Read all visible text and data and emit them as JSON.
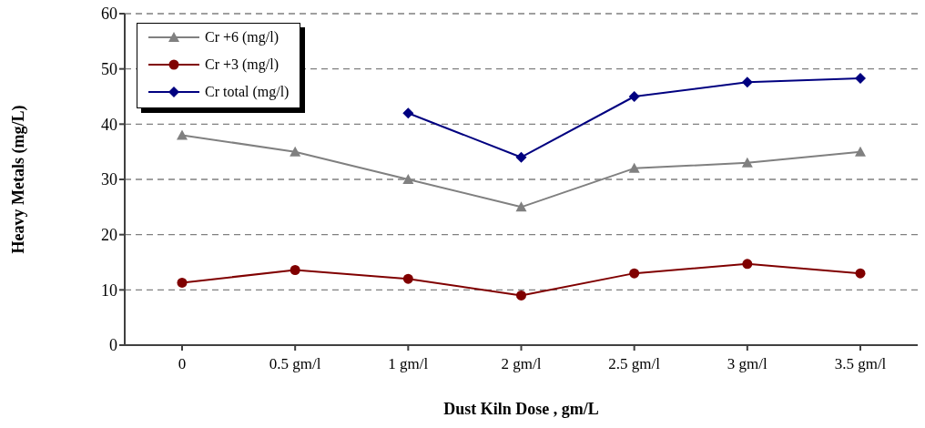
{
  "chart_data": {
    "type": "line",
    "xlabel": "Dust Kiln Dose , gm/L",
    "ylabel": "Heavy Metals (mg/L)",
    "categories": [
      "0",
      "0.5 gm/l",
      "1 gm/l",
      "2 gm/l",
      "2.5 gm/l",
      "3 gm/l",
      "3.5 gm/l"
    ],
    "series": [
      {
        "name": "Cr +6 (mg/l)",
        "color": "#808080",
        "marker": "triangle",
        "values": [
          38,
          35,
          30,
          25,
          32,
          33,
          35
        ]
      },
      {
        "name": "Cr +3 (mg/l)",
        "color": "#800000",
        "marker": "circle",
        "values": [
          11.3,
          13.6,
          12.0,
          9.0,
          13.0,
          14.7,
          13.0
        ]
      },
      {
        "name": "Cr total (mg/l)",
        "color": "#000080",
        "marker": "diamond",
        "values": [
          null,
          null,
          42,
          34,
          45,
          47.6,
          48.3
        ]
      }
    ],
    "ylim": [
      0,
      60
    ],
    "yticks": [
      0,
      10,
      20,
      30,
      40,
      50,
      60
    ],
    "grid": "y",
    "legend": "top left",
    "line_style": "solid"
  }
}
